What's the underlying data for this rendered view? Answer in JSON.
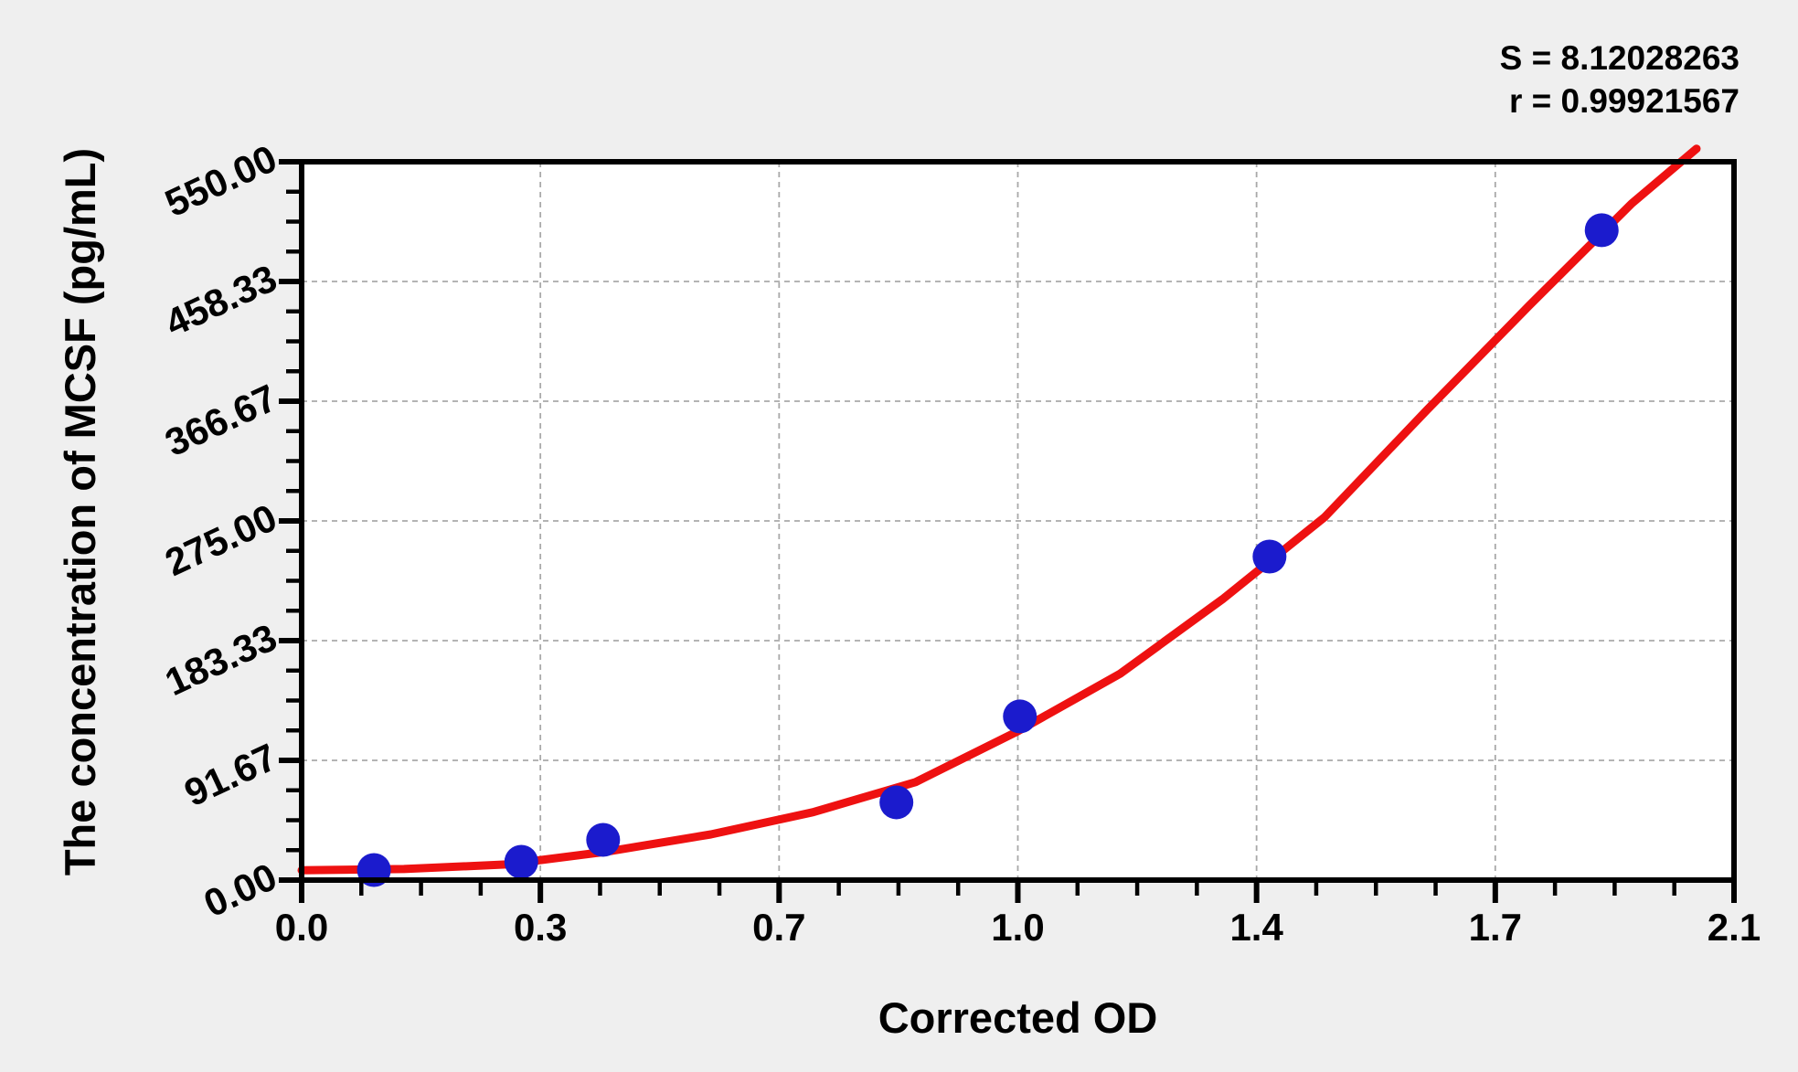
{
  "figure": {
    "background_color": "#efefef",
    "plot_background_color": "#ffffff",
    "frame_color": "#000000",
    "grid_color": "#a9a9a9",
    "text_color": "#000000"
  },
  "annotations": {
    "s_label": "S = 8.12028263",
    "r_label": "r = 0.99921567"
  },
  "x_axis": {
    "title": "Corrected OD",
    "tick_labels": [
      "0.0",
      "0.3",
      "0.7",
      "1.0",
      "1.4",
      "1.7",
      "2.1"
    ],
    "tick_values": [
      0,
      0.35,
      0.7,
      1.05,
      1.4,
      1.75,
      2.1
    ],
    "minor_divisions_per_interval": 4,
    "range": [
      0,
      2.1
    ]
  },
  "y_axis": {
    "title": "The concentration of MCSF (pg/mL)",
    "tick_labels": [
      "0.00",
      "91.67",
      "183.33",
      "275.00",
      "366.67",
      "458.33",
      "550.00"
    ],
    "tick_values": [
      0,
      91.667,
      183.333,
      275,
      366.667,
      458.333,
      550
    ],
    "minor_divisions_per_interval": 4,
    "range": [
      0,
      550
    ]
  },
  "chart_data": {
    "type": "scatter",
    "title": "",
    "xlabel": "Corrected OD",
    "ylabel": "The concentration of MCSF (pg/mL)",
    "xlim": [
      0,
      2.1
    ],
    "ylim": [
      0,
      550
    ],
    "grid": true,
    "legend": "none",
    "x_tick_labels": [
      "0.0",
      "0.3",
      "0.7",
      "1.0",
      "1.4",
      "1.7",
      "2.1"
    ],
    "y_tick_labels": [
      "0.00",
      "91.67",
      "183.33",
      "275.00",
      "366.67",
      "458.33",
      "550.00"
    ],
    "annotations": [
      "S = 8.12028263",
      "r = 0.99921567"
    ],
    "series": [
      {
        "name": "standard-points",
        "type": "scatter",
        "marker": "circle",
        "color": "#1b1bcd",
        "marker_radius_px": 18.5,
        "points": [
          [
            0.106,
            7.7
          ],
          [
            0.322,
            14.0
          ],
          [
            0.442,
            30.8
          ],
          [
            0.872,
            59.5
          ],
          [
            1.053,
            125.3
          ],
          [
            1.419,
            247.7
          ],
          [
            1.906,
            497.6
          ]
        ]
      },
      {
        "name": "fitted-curve",
        "type": "line",
        "color": "#ee1111",
        "stroke_width_px": 9,
        "points": [
          [
            0.0,
            7.5
          ],
          [
            0.15,
            8.5
          ],
          [
            0.3,
            12.0
          ],
          [
            0.45,
            22.0
          ],
          [
            0.6,
            35.0
          ],
          [
            0.75,
            52.0
          ],
          [
            0.9,
            75.0
          ],
          [
            1.05,
            114.0
          ],
          [
            1.2,
            158.0
          ],
          [
            1.35,
            215.0
          ],
          [
            1.5,
            278.0
          ],
          [
            1.65,
            360.0
          ],
          [
            1.8,
            440.0
          ],
          [
            1.95,
            518.0
          ],
          [
            2.045,
            560.0
          ]
        ]
      }
    ]
  }
}
